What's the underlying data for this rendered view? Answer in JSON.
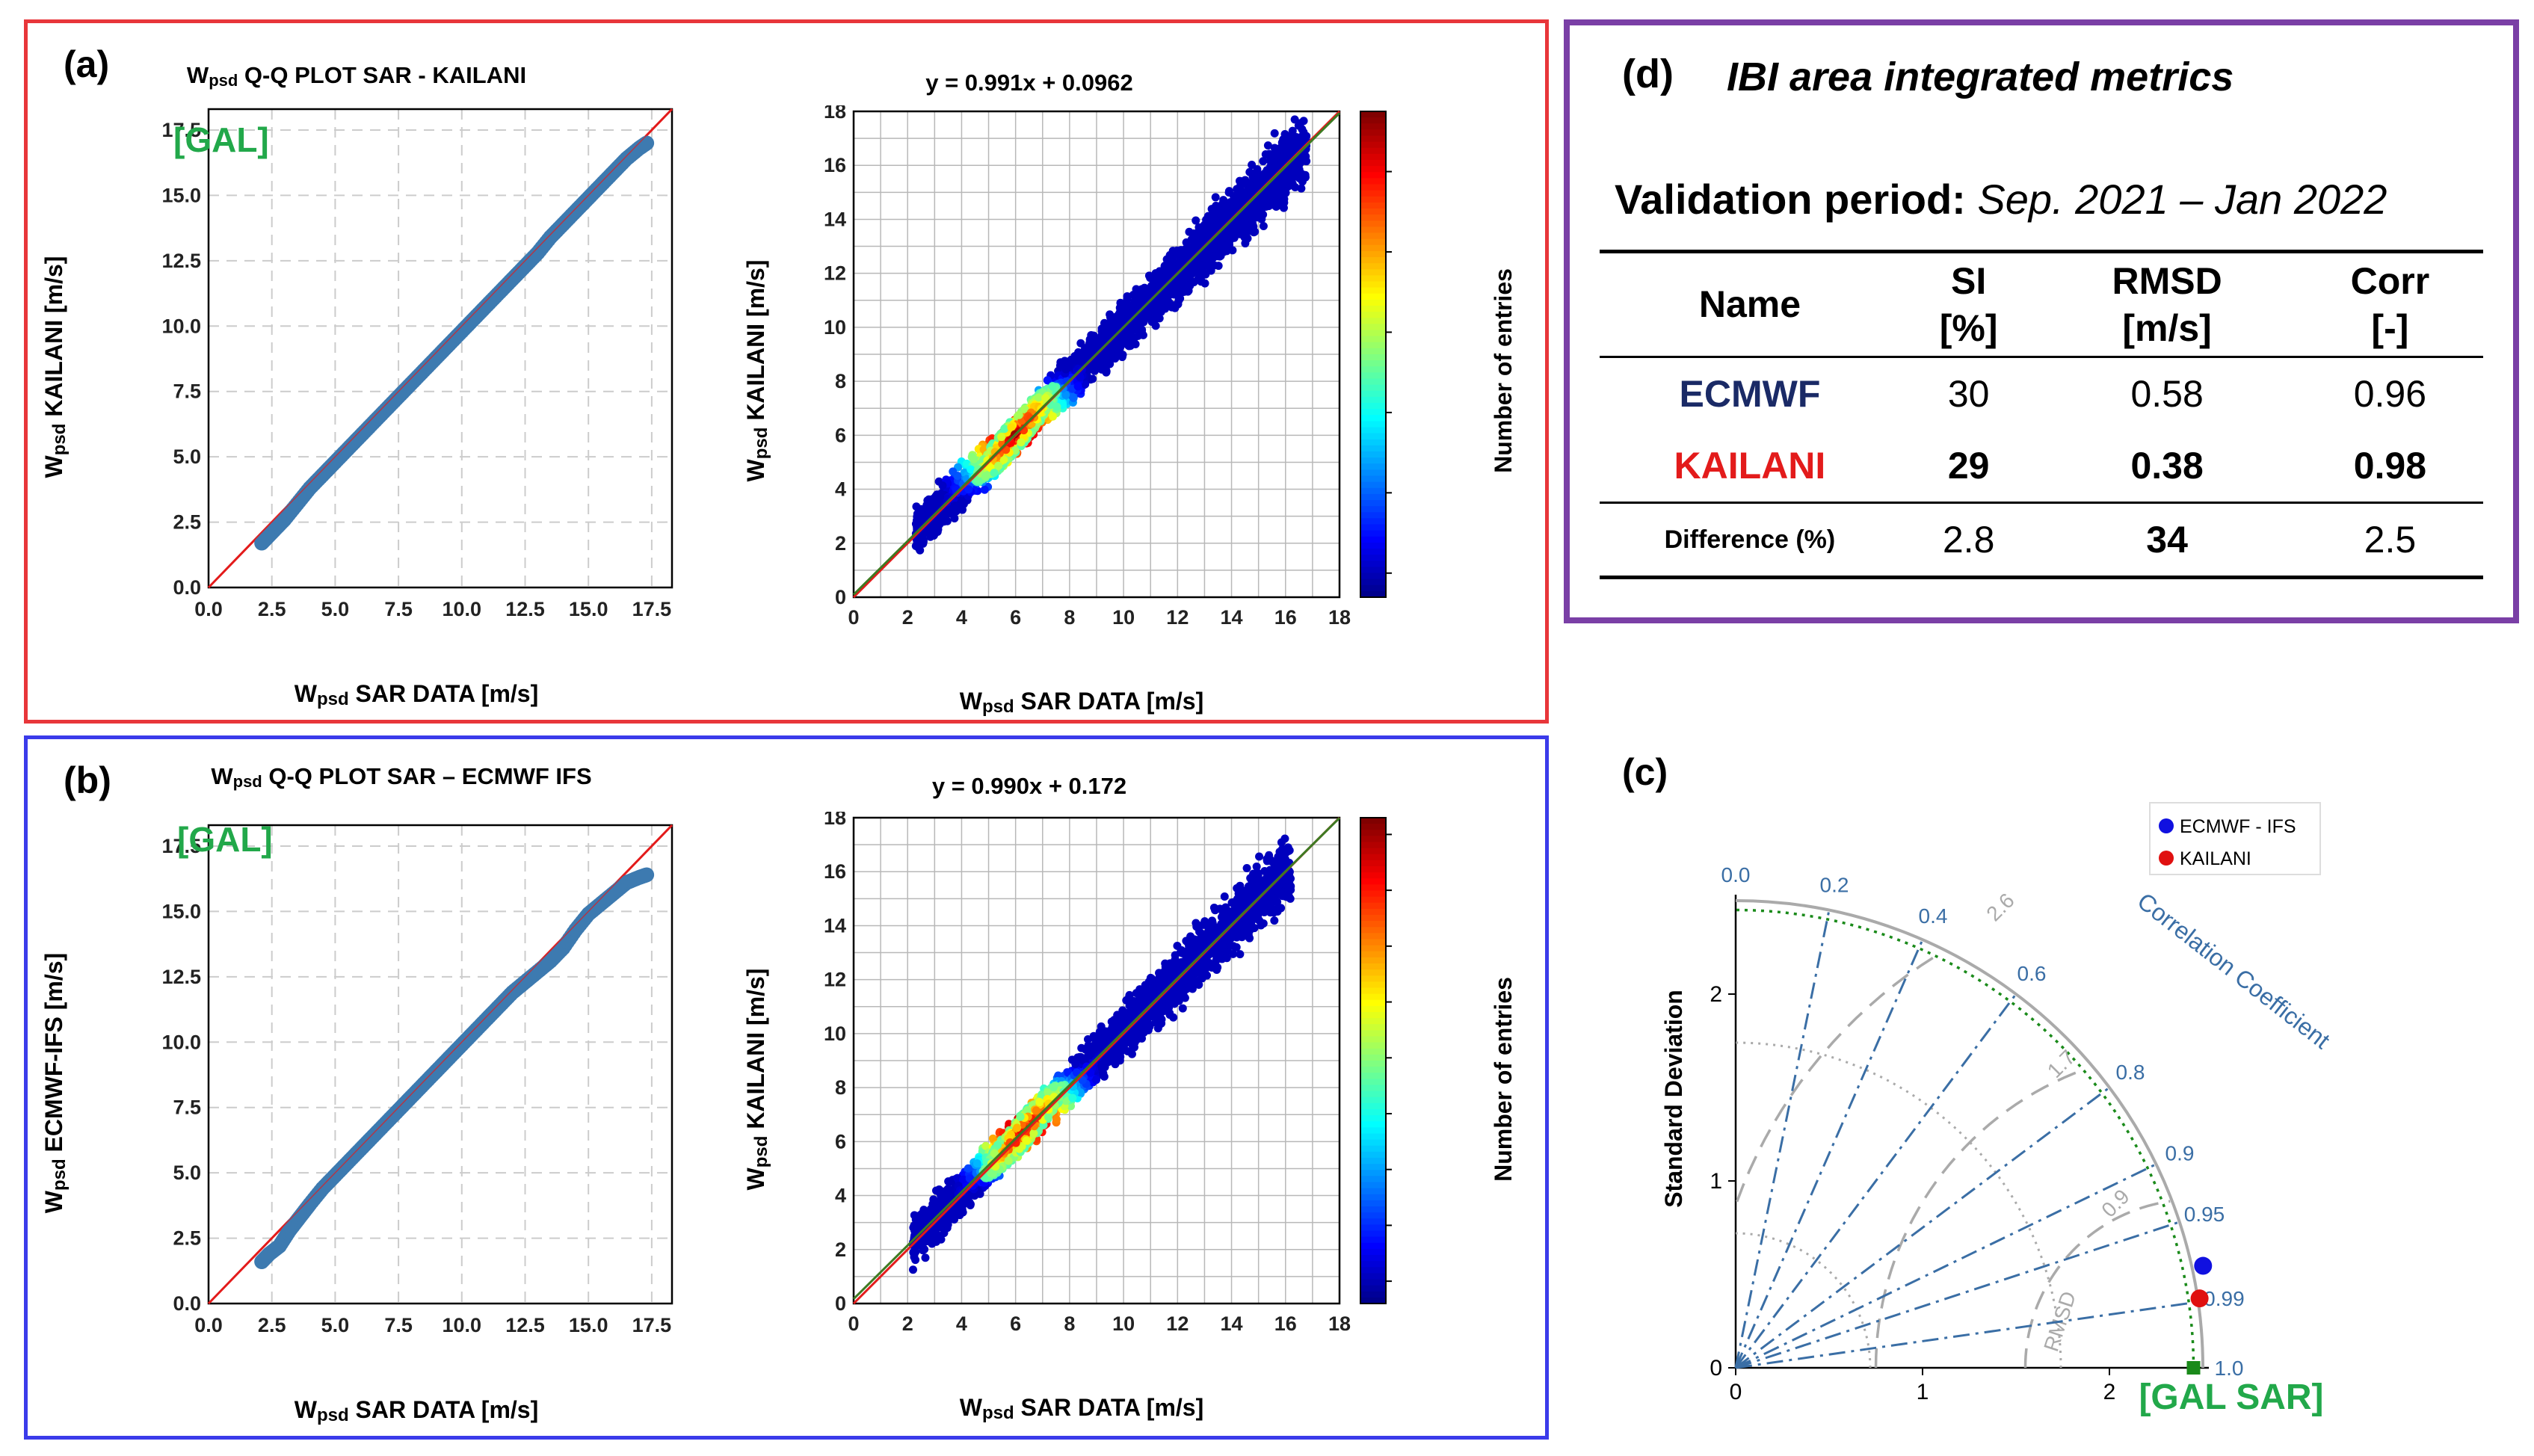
{
  "panels": {
    "a": {
      "label": "(a)",
      "qq": {
        "title_w": "W",
        "title_sub": "psd",
        "title_rest": " Q-Q PLOT SAR - KAILANI",
        "badge": "[GAL]",
        "ylabel_w": "W",
        "ylabel_sub": "psd",
        "ylabel_rest": " KAILANI [m/s]",
        "xlabel_w": "W",
        "xlabel_sub": "psd",
        "xlabel_rest": " SAR DATA [m/s]"
      },
      "scatter": {
        "title": "y = 0.991x + 0.0962",
        "ylabel_w": "W",
        "ylabel_sub": "psd",
        "ylabel_rest": " KAILANI [m/s]",
        "xlabel_w": "W",
        "xlabel_sub": "psd",
        "xlabel_rest": " SAR DATA [m/s]",
        "colorbar_label": "Number of entries"
      }
    },
    "b": {
      "label": "(b)",
      "qq": {
        "title_w": "W",
        "title_sub": "psd",
        "title_rest": " Q-Q PLOT SAR – ECMWF IFS",
        "badge": "[GAL]",
        "ylabel_w": "W",
        "ylabel_sub": "psd",
        "ylabel_rest": " ECMWF-IFS [m/s]",
        "xlabel_w": "W",
        "xlabel_sub": "psd",
        "xlabel_rest": " SAR DATA [m/s]"
      },
      "scatter": {
        "title": "y = 0.990x + 0.172",
        "ylabel_w": "W",
        "ylabel_sub": "psd",
        "ylabel_rest": " KAILANI [m/s]",
        "xlabel_w": "W",
        "xlabel_sub": "psd",
        "xlabel_rest": " SAR DATA [m/s]",
        "colorbar_label": "Number of entries"
      }
    },
    "c": {
      "label": "(c)",
      "ylabel": "Standard Deviation",
      "corr_label": "Correlation Coefficient",
      "rmsd_label": "RMSD",
      "ref_label": "[GAL SAR]",
      "legend": [
        {
          "name": "ECMWF - IFS",
          "color": "#1010e0"
        },
        {
          "name": "KAILANI",
          "color": "#e01010"
        }
      ]
    },
    "d": {
      "label": "(d)",
      "title": "IBI area integrated metrics",
      "period_label": "Validation period:",
      "period_value": "Sep. 2021 – Jan 2022",
      "headers": [
        {
          "top": "Name",
          "bottom": ""
        },
        {
          "top": "SI",
          "bottom": "[%]"
        },
        {
          "top": "RMSD",
          "bottom": "[m/s]"
        },
        {
          "top": "Corr",
          "bottom": "[-]"
        }
      ],
      "rows": [
        {
          "name": "ECMWF",
          "si": "30",
          "rmsd": "0.58",
          "corr": "0.96"
        },
        {
          "name": "KAILANI",
          "si": "29",
          "rmsd": "0.38",
          "corr": "0.98"
        },
        {
          "name": "Difference (%)",
          "si": "2.8",
          "rmsd": "34",
          "corr": "2.5"
        }
      ]
    }
  },
  "chart_data": [
    {
      "id": "a-qq",
      "type": "scatter",
      "title": "Wpsd Q-Q PLOT SAR - KAILANI",
      "xlabel": "Wpsd SAR DATA [m/s]",
      "ylabel": "Wpsd KAILANI [m/s]",
      "xlim": [
        0,
        18.3
      ],
      "ylim": [
        0,
        18.3
      ],
      "xticks": [
        0.0,
        2.5,
        5.0,
        7.5,
        10.0,
        12.5,
        15.0,
        17.5
      ],
      "yticks": [
        0.0,
        2.5,
        5.0,
        7.5,
        10.0,
        12.5,
        15.0,
        17.5
      ],
      "grid": true,
      "reference_line": "1:1",
      "points": [
        [
          2.1,
          1.7
        ],
        [
          2.3,
          1.9
        ],
        [
          2.6,
          2.2
        ],
        [
          3.0,
          2.6
        ],
        [
          3.5,
          3.2
        ],
        [
          4.0,
          3.8
        ],
        [
          4.5,
          4.3
        ],
        [
          5.0,
          4.8
        ],
        [
          5.5,
          5.3
        ],
        [
          6.0,
          5.8
        ],
        [
          6.5,
          6.3
        ],
        [
          7.0,
          6.8
        ],
        [
          7.5,
          7.3
        ],
        [
          8.0,
          7.8
        ],
        [
          8.5,
          8.3
        ],
        [
          9.0,
          8.8
        ],
        [
          9.5,
          9.3
        ],
        [
          10.0,
          9.8
        ],
        [
          10.5,
          10.3
        ],
        [
          11.0,
          10.8
        ],
        [
          11.5,
          11.3
        ],
        [
          12.0,
          11.8
        ],
        [
          12.5,
          12.3
        ],
        [
          13.0,
          12.8
        ],
        [
          13.5,
          13.4
        ],
        [
          14.0,
          13.9
        ],
        [
          14.5,
          14.4
        ],
        [
          15.0,
          14.9
        ],
        [
          15.5,
          15.4
        ],
        [
          16.0,
          15.9
        ],
        [
          16.5,
          16.4
        ],
        [
          17.0,
          16.8
        ],
        [
          17.3,
          17.0
        ]
      ]
    },
    {
      "id": "a-scatter",
      "type": "heatmap",
      "title": "y = 0.991x + 0.0962",
      "xlabel": "Wpsd SAR DATA [m/s]",
      "ylabel": "Wpsd KAILANI [m/s]",
      "xlim": [
        0,
        18
      ],
      "ylim": [
        0,
        18
      ],
      "xticks": [
        0,
        2,
        4,
        6,
        8,
        10,
        12,
        14,
        16,
        18
      ],
      "yticks": [
        0,
        2,
        4,
        6,
        8,
        10,
        12,
        14,
        16,
        18
      ],
      "fit": {
        "slope": 0.991,
        "intercept": 0.0962
      },
      "density_peak": [
        6.0,
        6.0
      ],
      "x_range": [
        2.3,
        16.8
      ],
      "colorbar": {
        "label": "Number of entries",
        "range": [
          -60,
          1150
        ],
        "ticks": [
          0,
          200,
          400,
          600,
          800,
          1000
        ]
      }
    },
    {
      "id": "b-qq",
      "type": "scatter",
      "title": "Wpsd Q-Q PLOT SAR – ECMWF IFS",
      "xlabel": "Wpsd SAR DATA [m/s]",
      "ylabel": "Wpsd ECMWF-IFS [m/s]",
      "xlim": [
        0,
        18.3
      ],
      "ylim": [
        0,
        18.3
      ],
      "xticks": [
        0.0,
        2.5,
        5.0,
        7.5,
        10.0,
        12.5,
        15.0,
        17.5
      ],
      "yticks": [
        0.0,
        2.5,
        5.0,
        7.5,
        10.0,
        12.5,
        15.0,
        17.5
      ],
      "grid": true,
      "reference_line": "1:1",
      "points": [
        [
          2.1,
          1.6
        ],
        [
          2.4,
          1.9
        ],
        [
          2.8,
          2.2
        ],
        [
          3.2,
          2.8
        ],
        [
          3.6,
          3.3
        ],
        [
          4.0,
          3.8
        ],
        [
          4.5,
          4.4
        ],
        [
          5.0,
          4.9
        ],
        [
          5.5,
          5.4
        ],
        [
          6.0,
          5.9
        ],
        [
          6.5,
          6.4
        ],
        [
          7.0,
          6.9
        ],
        [
          7.5,
          7.4
        ],
        [
          8.0,
          7.9
        ],
        [
          8.5,
          8.4
        ],
        [
          9.0,
          8.9
        ],
        [
          9.5,
          9.4
        ],
        [
          10.0,
          9.9
        ],
        [
          10.5,
          10.4
        ],
        [
          11.0,
          10.9
        ],
        [
          11.5,
          11.4
        ],
        [
          12.0,
          11.9
        ],
        [
          12.5,
          12.3
        ],
        [
          13.0,
          12.7
        ],
        [
          13.5,
          13.1
        ],
        [
          14.0,
          13.6
        ],
        [
          14.5,
          14.3
        ],
        [
          15.0,
          14.9
        ],
        [
          15.5,
          15.3
        ],
        [
          16.0,
          15.7
        ],
        [
          16.5,
          16.1
        ],
        [
          17.0,
          16.3
        ],
        [
          17.3,
          16.4
        ]
      ]
    },
    {
      "id": "b-scatter",
      "type": "heatmap",
      "title": "y = 0.990x + 0.172",
      "xlabel": "Wpsd SAR DATA [m/s]",
      "ylabel": "Wpsd KAILANI [m/s]",
      "xlim": [
        0,
        18
      ],
      "ylim": [
        0,
        18
      ],
      "xticks": [
        0,
        2,
        4,
        6,
        8,
        10,
        12,
        14,
        16,
        18
      ],
      "yticks": [
        0,
        2,
        4,
        6,
        8,
        10,
        12,
        14,
        16,
        18
      ],
      "fit": {
        "slope": 0.99,
        "intercept": 0.172
      },
      "density_peak": [
        6.3,
        6.6
      ],
      "x_range": [
        2.2,
        16.2
      ],
      "colorbar": {
        "label": "Number of entries",
        "range": [
          -40,
          830
        ],
        "ticks": [
          0,
          100,
          200,
          300,
          400,
          500,
          600,
          700,
          800
        ]
      }
    },
    {
      "id": "c-taylor",
      "type": "scatter",
      "ylabel": "Standard Deviation",
      "std_ticks": [
        0,
        1,
        2
      ],
      "std_max": 2.5,
      "correlation_ticks": [
        0.0,
        0.2,
        0.4,
        0.6,
        0.8,
        0.9,
        0.95,
        0.99,
        1.0
      ],
      "rmsd_contours": [
        0.9,
        1.7,
        2.6
      ],
      "reference_std": 2.45,
      "points": [
        {
          "name": "ECMWF - IFS",
          "std": 2.56,
          "corr": 0.977
        },
        {
          "name": "KAILANI",
          "std": 2.51,
          "corr": 0.989
        }
      ],
      "reference_label": "[GAL SAR]"
    }
  ]
}
